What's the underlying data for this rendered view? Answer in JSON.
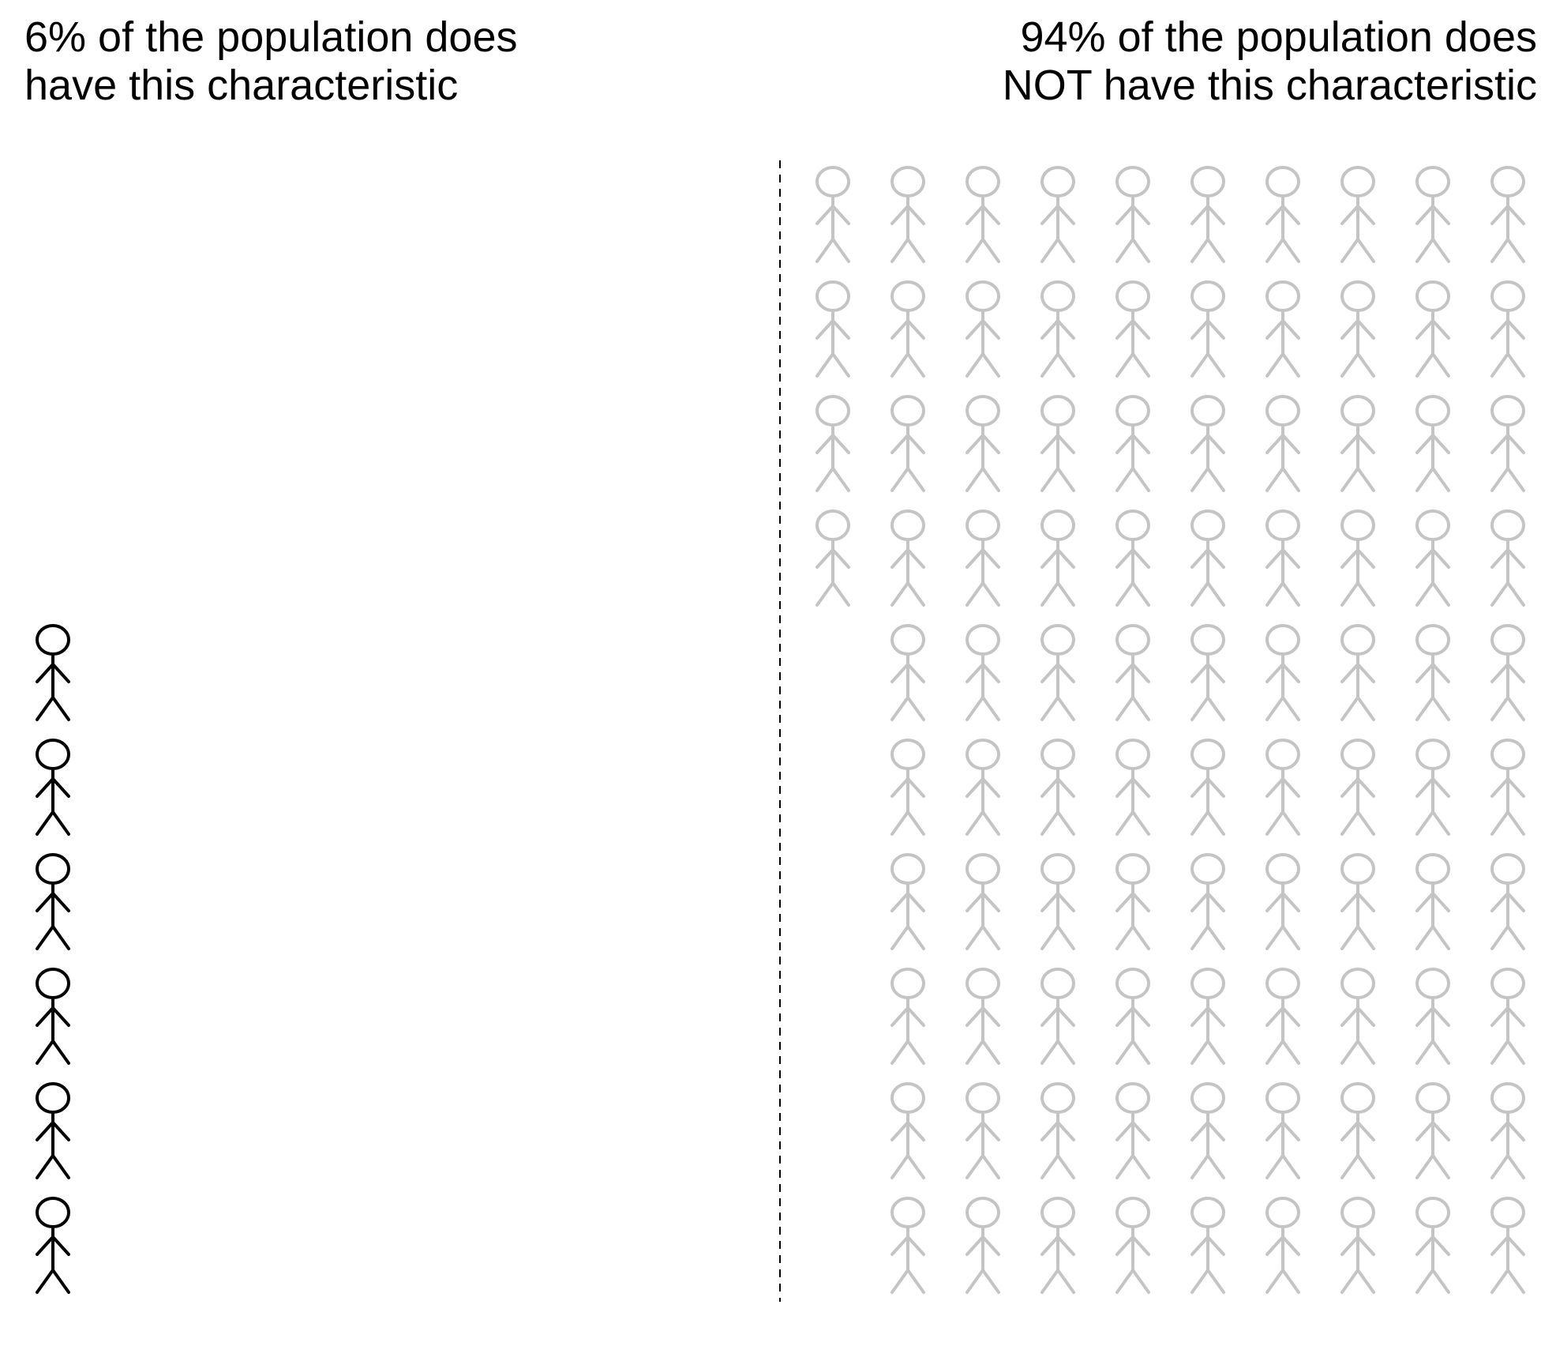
{
  "left_group": {
    "line1": "6% of the population does",
    "line2": "have this characteristic",
    "percent": 6,
    "color": "#000000"
  },
  "right_group": {
    "line1": "94% of the population does",
    "line2": "NOT have this characteristic",
    "percent": 94,
    "color": "#c4c4c4"
  },
  "icon": "stick-figure-icon"
}
